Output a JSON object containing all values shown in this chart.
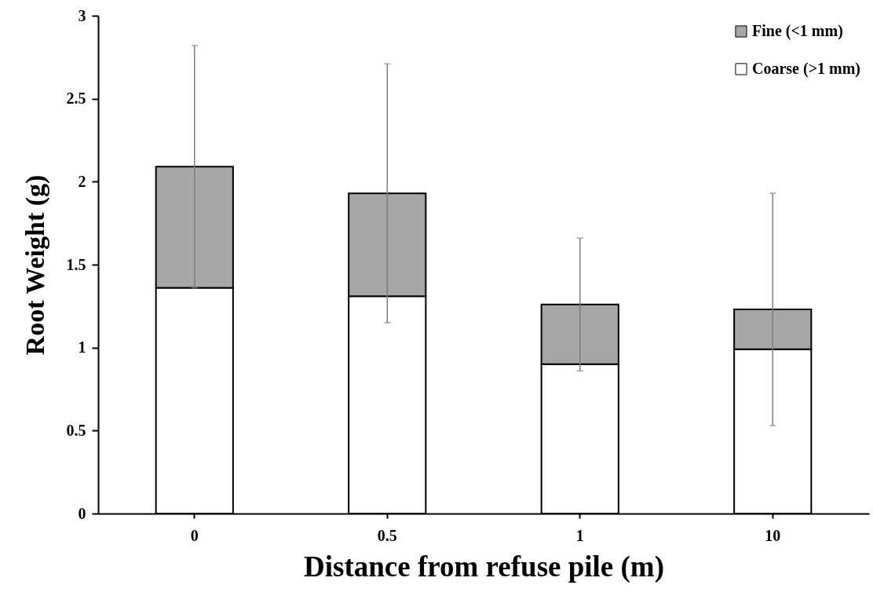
{
  "chart_data": {
    "type": "bar",
    "stacked": true,
    "xlabel": "Distance from refuse pile (m)",
    "ylabel": "Root Weight (g)",
    "categories": [
      "0",
      "0.5",
      "1",
      "10"
    ],
    "series": [
      {
        "name": "Coarse (>1 mm)",
        "color": "#ffffff",
        "values": [
          1.36,
          1.31,
          0.9,
          0.99
        ]
      },
      {
        "name": "Fine (<1 mm)",
        "color": "#a6a6a6",
        "values": [
          0.73,
          0.62,
          0.36,
          0.24
        ],
        "errors": [
          0.73,
          0.78,
          0.4,
          0.7
        ]
      }
    ],
    "ylim": [
      0,
      3
    ],
    "yticks": [
      0,
      0.5,
      1,
      1.5,
      2,
      2.5,
      3
    ],
    "grid": false,
    "legend": "top right"
  }
}
